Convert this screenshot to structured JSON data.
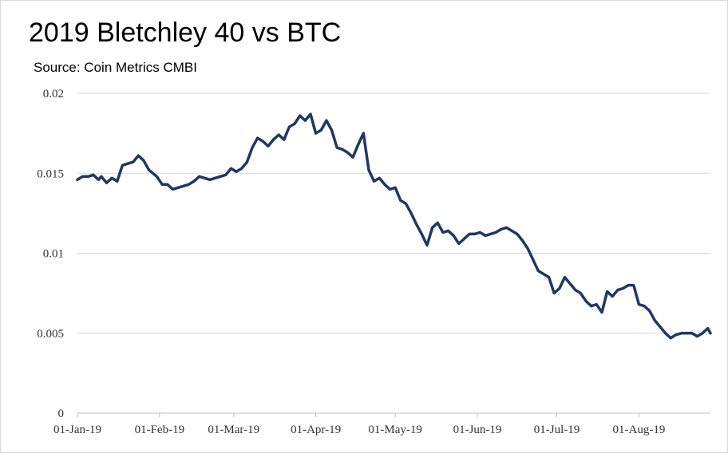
{
  "chart_data": {
    "type": "line",
    "title": "2019 Bletchley 40 vs BTC",
    "subtitle": "Source: Coin Metrics CMBI",
    "xlabel": "",
    "ylabel": "",
    "ylim": [
      0,
      0.02
    ],
    "xlim": [
      "2019-01-01",
      "2019-08-28"
    ],
    "grid": true,
    "y_ticks": [
      "0",
      "0.005",
      "0.01",
      "0.015",
      "0.02"
    ],
    "y_tick_values": [
      0,
      0.005,
      0.01,
      0.015,
      0.02
    ],
    "x_ticks": [
      "01-Jan-19",
      "01-Feb-19",
      "01-Mar-19",
      "01-Apr-19",
      "01-May-19",
      "01-Jun-19",
      "01-Jul-19",
      "01-Aug-19"
    ],
    "x_tick_dates": [
      "2019-01-01",
      "2019-02-01",
      "2019-03-01",
      "2019-04-01",
      "2019-05-01",
      "2019-06-01",
      "2019-07-01",
      "2019-08-01"
    ],
    "series": [
      {
        "color": "#1f3864",
        "x": [
          "2019-01-01",
          "2019-01-03",
          "2019-01-05",
          "2019-01-07",
          "2019-01-09",
          "2019-01-10",
          "2019-01-12",
          "2019-01-14",
          "2019-01-16",
          "2019-01-18",
          "2019-01-20",
          "2019-01-22",
          "2019-01-24",
          "2019-01-26",
          "2019-01-28",
          "2019-01-31",
          "2019-02-02",
          "2019-02-04",
          "2019-02-06",
          "2019-02-08",
          "2019-02-10",
          "2019-02-12",
          "2019-02-14",
          "2019-02-16",
          "2019-02-18",
          "2019-02-20",
          "2019-02-22",
          "2019-02-24",
          "2019-02-26",
          "2019-02-28",
          "2019-03-02",
          "2019-03-04",
          "2019-03-06",
          "2019-03-08",
          "2019-03-10",
          "2019-03-12",
          "2019-03-14",
          "2019-03-16",
          "2019-03-18",
          "2019-03-20",
          "2019-03-22",
          "2019-03-24",
          "2019-03-26",
          "2019-03-28",
          "2019-03-30",
          "2019-04-01",
          "2019-04-03",
          "2019-04-05",
          "2019-04-07",
          "2019-04-09",
          "2019-04-11",
          "2019-04-13",
          "2019-04-15",
          "2019-04-17",
          "2019-04-19",
          "2019-04-21",
          "2019-04-23",
          "2019-04-25",
          "2019-04-27",
          "2019-04-29",
          "2019-05-01",
          "2019-05-03",
          "2019-05-05",
          "2019-05-07",
          "2019-05-09",
          "2019-05-11",
          "2019-05-13",
          "2019-05-15",
          "2019-05-17",
          "2019-05-19",
          "2019-05-21",
          "2019-05-23",
          "2019-05-25",
          "2019-05-27",
          "2019-05-29",
          "2019-05-31",
          "2019-06-02",
          "2019-06-04",
          "2019-06-06",
          "2019-06-08",
          "2019-06-10",
          "2019-06-12",
          "2019-06-14",
          "2019-06-16",
          "2019-06-18",
          "2019-06-20",
          "2019-06-22",
          "2019-06-24",
          "2019-06-26",
          "2019-06-28",
          "2019-06-30",
          "2019-07-02",
          "2019-07-04",
          "2019-07-06",
          "2019-07-08",
          "2019-07-10",
          "2019-07-12",
          "2019-07-14",
          "2019-07-16",
          "2019-07-18",
          "2019-07-20",
          "2019-07-22",
          "2019-07-24",
          "2019-07-26",
          "2019-07-28",
          "2019-07-30",
          "2019-08-01",
          "2019-08-03",
          "2019-08-05",
          "2019-08-07",
          "2019-08-09",
          "2019-08-11",
          "2019-08-13",
          "2019-08-15",
          "2019-08-17",
          "2019-08-19",
          "2019-08-21",
          "2019-08-23",
          "2019-08-25",
          "2019-08-27",
          "2019-08-28"
        ],
        "y": [
          0.0146,
          0.0148,
          0.0148,
          0.0149,
          0.0146,
          0.0148,
          0.0144,
          0.0147,
          0.0145,
          0.0155,
          0.0156,
          0.0157,
          0.0161,
          0.0158,
          0.0152,
          0.0148,
          0.0143,
          0.0143,
          0.014,
          0.0141,
          0.0142,
          0.0143,
          0.0145,
          0.0148,
          0.0147,
          0.0146,
          0.0147,
          0.0148,
          0.0149,
          0.0153,
          0.0151,
          0.0153,
          0.0157,
          0.0166,
          0.0172,
          0.017,
          0.0167,
          0.0171,
          0.0174,
          0.0171,
          0.0179,
          0.0181,
          0.0186,
          0.0183,
          0.0187,
          0.0175,
          0.0177,
          0.0183,
          0.0177,
          0.0166,
          0.0165,
          0.0163,
          0.016,
          0.0168,
          0.0175,
          0.0152,
          0.0145,
          0.0147,
          0.0143,
          0.014,
          0.0141,
          0.0133,
          0.0131,
          0.0125,
          0.0118,
          0.0112,
          0.0105,
          0.0116,
          0.0119,
          0.0113,
          0.0114,
          0.0111,
          0.0106,
          0.0109,
          0.0112,
          0.0112,
          0.0113,
          0.0111,
          0.0112,
          0.0113,
          0.0115,
          0.0116,
          0.0114,
          0.0112,
          0.0108,
          0.0103,
          0.0096,
          0.0089,
          0.0087,
          0.0085,
          0.0075,
          0.0078,
          0.0085,
          0.0081,
          0.0077,
          0.0075,
          0.007,
          0.0067,
          0.0068,
          0.0063,
          0.0076,
          0.0073,
          0.0077,
          0.0078,
          0.008,
          0.008,
          0.0068,
          0.0067,
          0.0064,
          0.0058,
          0.0054,
          0.005,
          0.0047,
          0.0049,
          0.005,
          0.005,
          0.005,
          0.0048,
          0.005,
          0.0053,
          0.005
        ]
      }
    ]
  }
}
